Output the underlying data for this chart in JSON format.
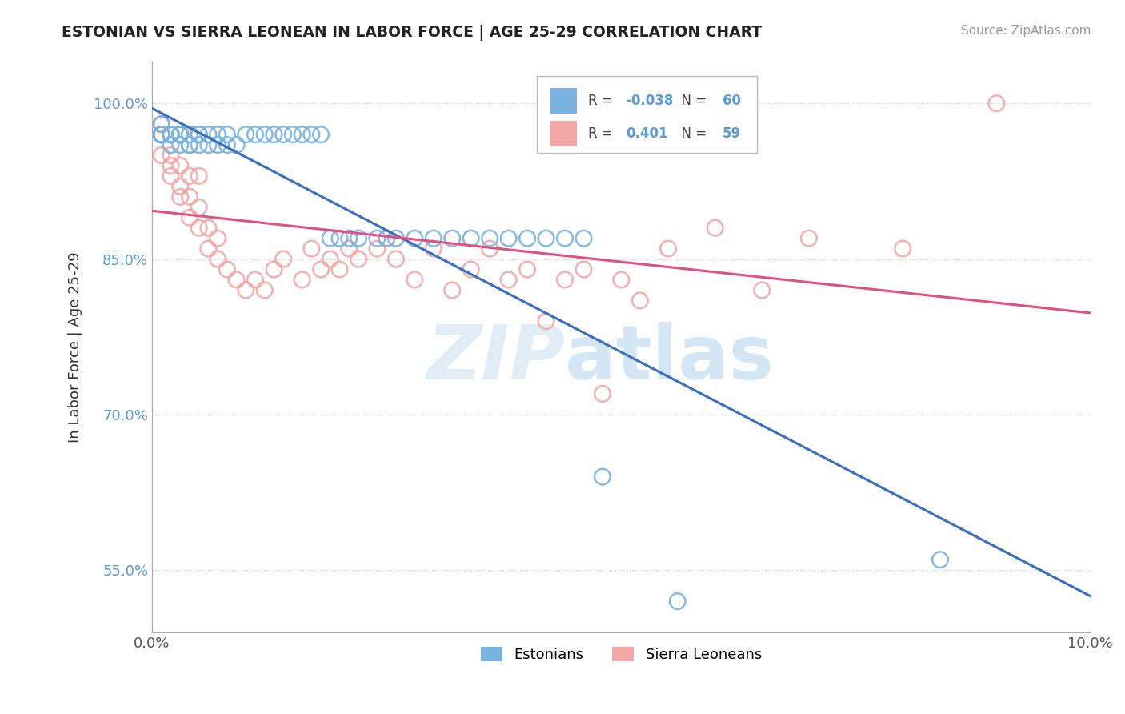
{
  "title": "ESTONIAN VS SIERRA LEONEAN IN LABOR FORCE | AGE 25-29 CORRELATION CHART",
  "source": "Source: ZipAtlas.com",
  "ylabel": "In Labor Force | Age 25-29",
  "xlim": [
    0.0,
    0.1
  ],
  "ylim": [
    0.49,
    1.04
  ],
  "yticks": [
    0.55,
    0.7,
    0.85,
    1.0
  ],
  "ytick_labels": [
    "55.0%",
    "70.0%",
    "85.0%",
    "100.0%"
  ],
  "xticks": [
    0.0,
    0.1
  ],
  "xtick_labels": [
    "0.0%",
    "10.0%"
  ],
  "r_estonian": -0.038,
  "n_estonian": 60,
  "r_sierraleonean": 0.401,
  "n_sierraleonean": 59,
  "blue_color": "#7ab3e0",
  "pink_color": "#f4a7a7",
  "line_blue": "#3a6fba",
  "line_pink": "#e05080",
  "watermark_zip": "ZIP",
  "watermark_atlas": "atlas",
  "legend_labels": [
    "Estonians",
    "Sierra Leoneans"
  ],
  "estonian_x": [
    0.001,
    0.001,
    0.001,
    0.001,
    0.001,
    0.001,
    0.002,
    0.002,
    0.002,
    0.002,
    0.002,
    0.002,
    0.002,
    0.003,
    0.003,
    0.003,
    0.003,
    0.003,
    0.004,
    0.004,
    0.004,
    0.005,
    0.005,
    0.005,
    0.006,
    0.006,
    0.007,
    0.007,
    0.008,
    0.008,
    0.009,
    0.01,
    0.011,
    0.012,
    0.013,
    0.014,
    0.015,
    0.016,
    0.017,
    0.018,
    0.019,
    0.02,
    0.021,
    0.022,
    0.024,
    0.025,
    0.026,
    0.028,
    0.03,
    0.032,
    0.034,
    0.036,
    0.038,
    0.04,
    0.042,
    0.044,
    0.046,
    0.048,
    0.056,
    0.084
  ],
  "estonian_y": [
    0.97,
    0.97,
    0.97,
    0.97,
    0.97,
    0.98,
    0.96,
    0.97,
    0.97,
    0.97,
    0.97,
    0.97,
    0.97,
    0.96,
    0.97,
    0.97,
    0.97,
    0.97,
    0.96,
    0.96,
    0.97,
    0.96,
    0.97,
    0.97,
    0.96,
    0.97,
    0.96,
    0.97,
    0.96,
    0.97,
    0.96,
    0.97,
    0.97,
    0.97,
    0.97,
    0.97,
    0.97,
    0.97,
    0.97,
    0.97,
    0.87,
    0.87,
    0.87,
    0.87,
    0.87,
    0.87,
    0.87,
    0.87,
    0.87,
    0.87,
    0.87,
    0.87,
    0.87,
    0.87,
    0.87,
    0.87,
    0.87,
    0.64,
    0.52,
    0.56
  ],
  "sierraleonean_x": [
    0.001,
    0.001,
    0.001,
    0.001,
    0.001,
    0.002,
    0.002,
    0.002,
    0.002,
    0.003,
    0.003,
    0.003,
    0.003,
    0.004,
    0.004,
    0.004,
    0.005,
    0.005,
    0.005,
    0.006,
    0.006,
    0.007,
    0.007,
    0.008,
    0.009,
    0.01,
    0.011,
    0.012,
    0.013,
    0.014,
    0.016,
    0.017,
    0.018,
    0.019,
    0.02,
    0.021,
    0.022,
    0.024,
    0.025,
    0.026,
    0.028,
    0.03,
    0.032,
    0.034,
    0.036,
    0.038,
    0.04,
    0.042,
    0.044,
    0.046,
    0.048,
    0.05,
    0.052,
    0.055,
    0.06,
    0.065,
    0.07,
    0.08,
    0.09
  ],
  "sierraleonean_y": [
    0.97,
    0.97,
    0.98,
    0.98,
    0.95,
    0.93,
    0.94,
    0.97,
    0.95,
    0.91,
    0.92,
    0.94,
    0.97,
    0.89,
    0.91,
    0.93,
    0.88,
    0.9,
    0.93,
    0.86,
    0.88,
    0.85,
    0.87,
    0.84,
    0.83,
    0.82,
    0.83,
    0.82,
    0.84,
    0.85,
    0.83,
    0.86,
    0.84,
    0.85,
    0.84,
    0.86,
    0.85,
    0.86,
    0.87,
    0.85,
    0.83,
    0.86,
    0.82,
    0.84,
    0.86,
    0.83,
    0.84,
    0.79,
    0.83,
    0.84,
    0.72,
    0.83,
    0.81,
    0.86,
    0.88,
    0.82,
    0.87,
    0.86,
    1.0
  ]
}
